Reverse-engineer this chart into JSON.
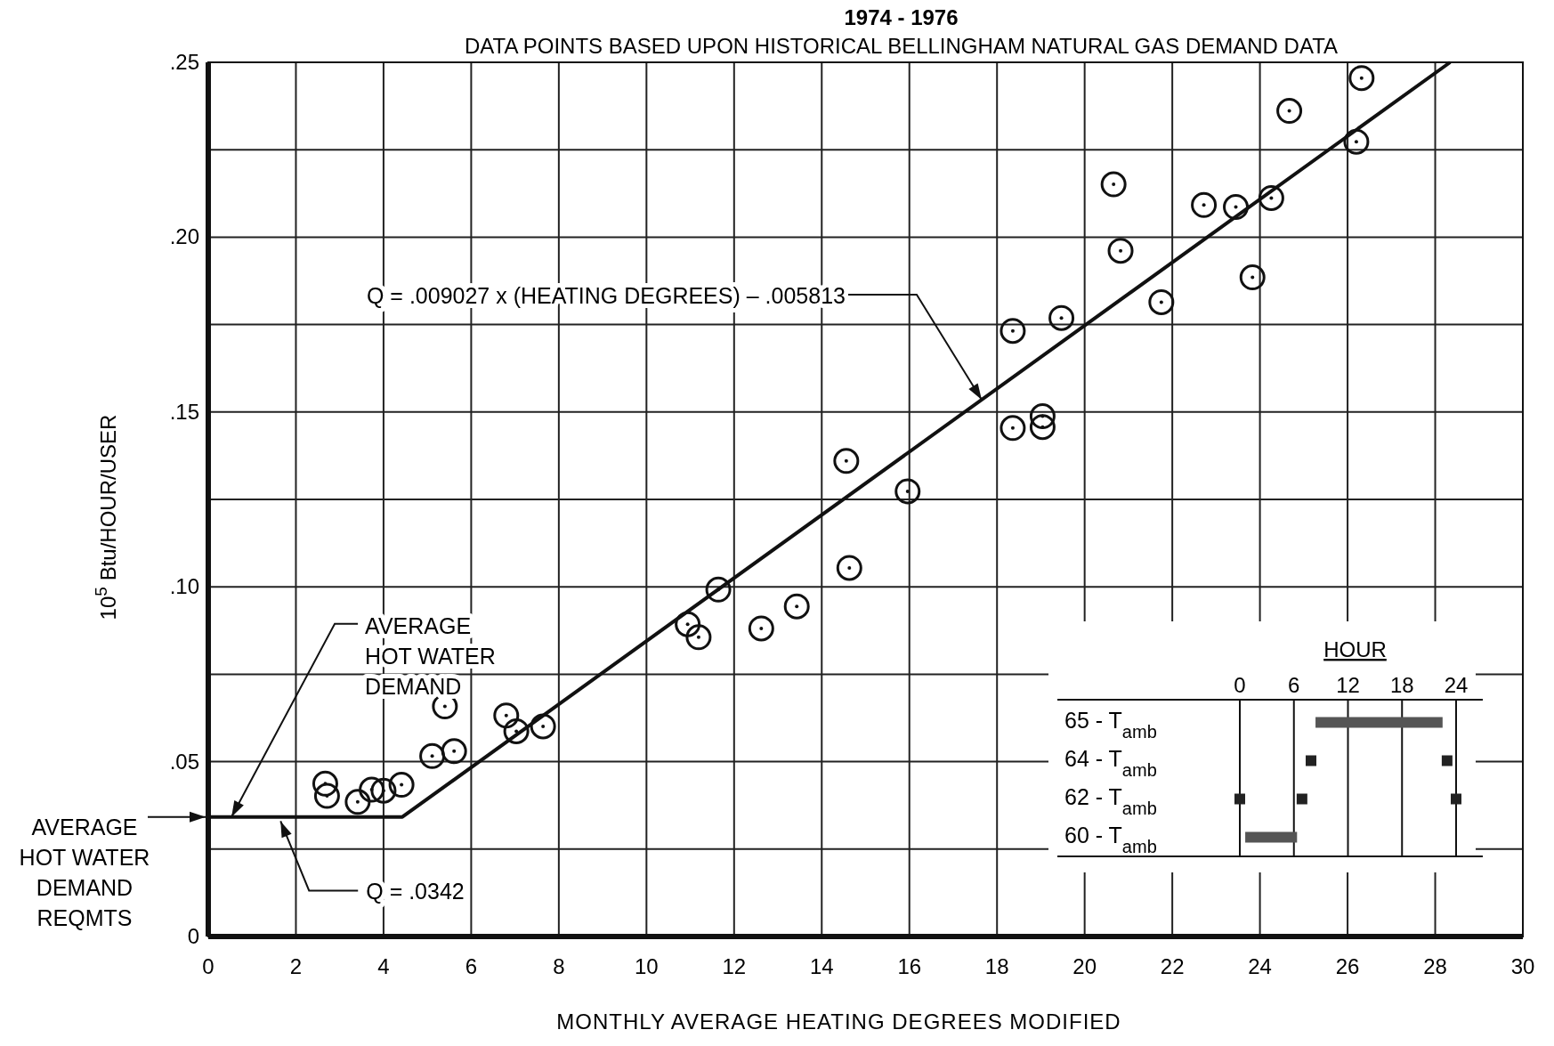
{
  "chart_data": [
    {
      "type": "scatter",
      "title": "1974 - 1976",
      "subtitle": "DATA POINTS BASED UPON HISTORICAL BELLINGHAM NATURAL GAS DEMAND DATA",
      "xlabel": "MONTHLY AVERAGE HEATING DEGREES MODIFIED",
      "ylabel": "10$^{5}$ Btu/HOUR/USER",
      "xlim": [
        0,
        30
      ],
      "xticks": [
        0,
        2,
        4,
        6,
        8,
        10,
        12,
        14,
        16,
        18,
        20,
        22,
        24,
        26,
        28,
        30
      ],
      "ylim": [
        0,
        0.25
      ],
      "yticks": [
        0,
        {
          "value": 0.025,
          "label": null
        },
        {
          "value": 0.05,
          "label": ".05"
        },
        {
          "value": 0.075,
          "label": null
        },
        {
          "value": 0.1,
          "label": ".10"
        },
        {
          "value": 0.125,
          "label": null
        },
        {
          "value": 0.15,
          "label": ".15"
        },
        {
          "value": 0.175,
          "label": null
        },
        {
          "value": 0.2,
          "label": ".20"
        },
        {
          "value": 0.225,
          "label": null
        },
        {
          "value": 0.25,
          "label": ".25"
        }
      ],
      "grid": true,
      "series": [
        {
          "type": "scatter",
          "marker": "circle",
          "color": "#111111",
          "x": [
            2.67,
            2.71,
            3.41,
            3.73,
            4.0,
            4.41,
            5.11,
            5.4,
            5.61,
            6.8,
            7.03,
            7.64,
            10.94,
            11.19,
            11.64,
            12.62,
            13.43,
            14.56,
            14.63,
            15.96,
            18.36,
            18.36,
            19.04,
            19.04,
            19.47,
            20.66,
            20.82,
            21.75,
            22.72,
            23.45,
            23.83,
            24.26,
            24.67,
            26.2,
            26.32
          ],
          "values": [
            0.0437,
            0.0402,
            0.0385,
            0.042,
            0.0417,
            0.0434,
            0.0516,
            0.0658,
            0.053,
            0.0632,
            0.0587,
            0.0601,
            0.0893,
            0.0856,
            0.0992,
            0.0881,
            0.0944,
            0.136,
            0.1054,
            0.1273,
            0.1732,
            0.1454,
            0.1488,
            0.1457,
            0.1769,
            0.2151,
            0.1961,
            0.1814,
            0.2092,
            0.2086,
            0.1885,
            0.2112,
            0.2361,
            0.2273,
            0.2455
          ]
        },
        {
          "type": "line",
          "marker": "none",
          "line_style": "solid",
          "color": "#111111",
          "x": [
            0,
            4.43,
            28.34
          ],
          "values": [
            0.0342,
            0.0342,
            0.25
          ]
        }
      ],
      "annotations": [
        {
          "text": "Q = .009027 x (HEATING DEGREES) – .005813",
          "x": 17.65,
          "y": 0.1535
        },
        {
          "text": "AVERAGE\nHOT WATER\nDEMAND",
          "x": 0.53,
          "y": 0.0342
        },
        {
          "text": "Q = .0342",
          "x": 1.65,
          "y": 0.033
        },
        {
          "text": "AVERAGE\nHOT WATER\nDEMAND\nREQMTS",
          "x": 0,
          "y": 0.0342
        }
      ]
    },
    {
      "type": "bar",
      "orientation": "horizontal",
      "xlabel": "HOUR",
      "xlim": [
        0,
        24
      ],
      "xticks": [
        0,
        6,
        12,
        18,
        24
      ],
      "grid": "x",
      "categories": [
        "65 - T$_{amb}$",
        "64 - T$_{amb}$",
        "62 - T$_{amb}$",
        "60 - T$_{amb}$"
      ],
      "series": [
        {
          "type": "bar",
          "color": "#555555",
          "base": [
            8.4,
            null,
            null,
            0.6
          ],
          "values": [
            14.1,
            null,
            null,
            5.75
          ]
        },
        {
          "type": "scatter",
          "marker": "square",
          "color": "#222222",
          "x": [
            "64 - T$_{amb}$",
            "64 - T$_{amb}$",
            "62 - T$_{amb}$",
            "62 - T$_{amb}$",
            "62 - T$_{amb}$"
          ],
          "values": [
            7.9,
            23.0,
            0,
            6.9,
            24
          ]
        }
      ]
    }
  ]
}
